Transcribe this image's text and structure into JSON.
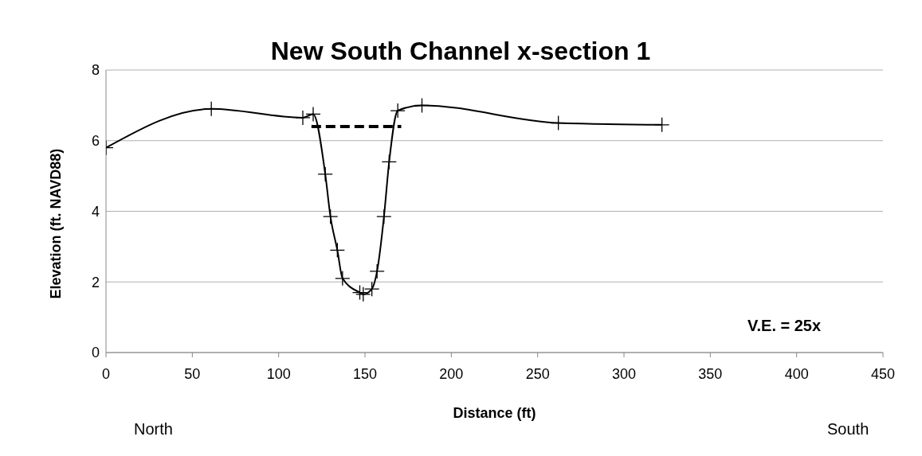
{
  "chart_data": {
    "type": "line",
    "title": "New South Channel x-section 1",
    "xlabel": "Distance (ft)",
    "ylabel": "Elevation (ft. NAVD88)",
    "annotations": [
      "North",
      "South",
      "V.E. = 25x"
    ],
    "xlim": [
      0,
      450
    ],
    "xticks": [
      0,
      50,
      100,
      150,
      200,
      250,
      300,
      350,
      400,
      450
    ],
    "ylim": [
      0,
      8
    ],
    "yticks": [
      0,
      2,
      4,
      6,
      8
    ],
    "grid": "y",
    "marker": "cross",
    "line_style": "solid",
    "legend": false,
    "series": [
      {
        "color": "#000000",
        "x": [
          0,
          61,
          114,
          120,
          127,
          130,
          134,
          137,
          147,
          149,
          154,
          157,
          161,
          164,
          169,
          183,
          262,
          322
        ],
        "values": [
          5.8,
          6.9,
          6.65,
          6.75,
          5.05,
          3.85,
          2.9,
          2.1,
          1.7,
          1.65,
          1.8,
          2.3,
          3.85,
          5.4,
          6.85,
          7.0,
          6.5,
          6.45
        ]
      },
      {
        "color": "#000000",
        "type": "line",
        "line_style": "dashed",
        "marker": "none",
        "x": [
          119,
          171
        ],
        "values": [
          6.4,
          6.4
        ]
      }
    ]
  }
}
